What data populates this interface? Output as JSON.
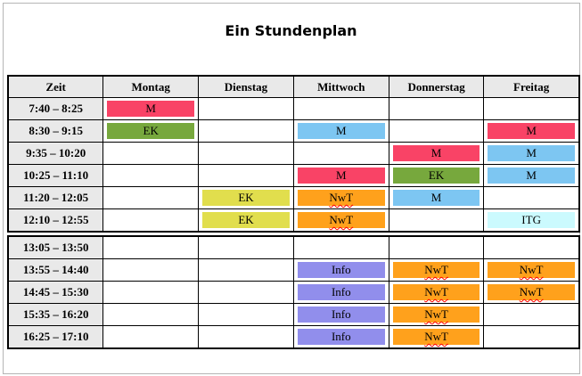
{
  "title": "Ein Stundenplan",
  "columns": [
    "Zeit",
    "Montag",
    "Dienstag",
    "Mittwoch",
    "Donnerstag",
    "Freitag"
  ],
  "palette": {
    "pink": "#F94366",
    "green": "#77A83D",
    "blue": "#7DC6F2",
    "yellow": "#E1DE4D",
    "orange": "#FFA11C",
    "purple": "#918EEC",
    "cyan": "#CBFAFE",
    "header_bg": "#E9E9E9",
    "table_border": "#000000",
    "frame_border": "#B5B5B5",
    "squiggle": "#FF0000"
  },
  "rows": [
    {
      "time": "7:40 – 8:25",
      "cells": [
        {
          "label": "M",
          "color": "pink"
        },
        null,
        null,
        null,
        null
      ]
    },
    {
      "time": "8:30 – 9:15",
      "cells": [
        {
          "label": "EK",
          "color": "green"
        },
        null,
        {
          "label": "M",
          "color": "blue"
        },
        null,
        {
          "label": "M",
          "color": "pink"
        }
      ]
    },
    {
      "time": "9:35 – 10:20",
      "cells": [
        null,
        null,
        null,
        {
          "label": "M",
          "color": "pink"
        },
        {
          "label": "M",
          "color": "blue"
        }
      ]
    },
    {
      "time": "10:25 – 11:10",
      "cells": [
        null,
        null,
        {
          "label": "M",
          "color": "pink"
        },
        {
          "label": "EK",
          "color": "green"
        },
        {
          "label": "M",
          "color": "blue"
        }
      ]
    },
    {
      "time": "11:20 – 12:05",
      "cells": [
        null,
        {
          "label": "EK",
          "color": "yellow"
        },
        {
          "label": "NwT",
          "color": "orange",
          "squiggle": true
        },
        {
          "label": "M",
          "color": "blue"
        },
        null
      ]
    },
    {
      "time": "12:10 – 12:55",
      "cells": [
        null,
        {
          "label": "EK",
          "color": "yellow"
        },
        {
          "label": "NwT",
          "color": "orange",
          "squiggle": true
        },
        null,
        {
          "label": "ITG",
          "color": "cyan"
        }
      ]
    },
    {
      "time": "13:05 – 13:50",
      "cells": [
        null,
        null,
        null,
        null,
        null
      ]
    },
    {
      "time": "13:55 – 14:40",
      "cells": [
        null,
        null,
        {
          "label": "Info",
          "color": "purple"
        },
        {
          "label": "NwT",
          "color": "orange",
          "squiggle": true
        },
        {
          "label": "NwT",
          "color": "orange",
          "squiggle": true
        }
      ]
    },
    {
      "time": "14:45 – 15:30",
      "cells": [
        null,
        null,
        {
          "label": "Info",
          "color": "purple"
        },
        {
          "label": "NwT",
          "color": "orange",
          "squiggle": true
        },
        {
          "label": "NwT",
          "color": "orange",
          "squiggle": true
        }
      ]
    },
    {
      "time": "15:35 – 16:20",
      "cells": [
        null,
        null,
        {
          "label": "Info",
          "color": "purple"
        },
        {
          "label": "NwT",
          "color": "orange",
          "squiggle": true
        },
        null
      ]
    },
    {
      "time": "16:25 – 17:10",
      "cells": [
        null,
        null,
        {
          "label": "Info",
          "color": "purple"
        },
        {
          "label": "NwT",
          "color": "orange",
          "squiggle": true
        },
        null
      ]
    }
  ],
  "upper_row_count": 6
}
